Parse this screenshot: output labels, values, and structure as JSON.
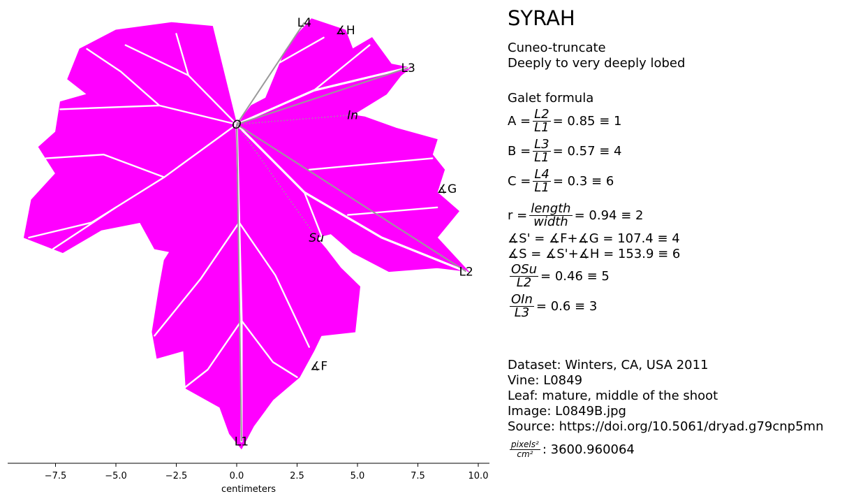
{
  "title": "SYRAH",
  "shape": "Cuneo-truncate",
  "lobing": "Deeply to very deeply lobed",
  "galet_heading": "Galet formula",
  "formulas": [
    {
      "lhs": "A =",
      "num": "L2",
      "den": "L1",
      "rhs": "= 0.85 ≡ 1"
    },
    {
      "lhs": "B =",
      "num": "L3",
      "den": "L1",
      "rhs": "= 0.57 ≡ 4"
    },
    {
      "lhs": "C =",
      "num": "L4",
      "den": "L1",
      "rhs": "= 0.3 ≡ 6"
    },
    {
      "lhs": "r =",
      "num": "length",
      "den": "width",
      "rhs": "= 0.94 ≡ 2"
    },
    {
      "text": "∡S' = ∡F+∡G = 107.4 ≡ 4"
    },
    {
      "text": "∡S = ∡S'+∡H = 153.9 ≡ 6"
    },
    {
      "lhs": "",
      "num": "OSu",
      "den": "L2",
      "rhs": "= 0.46 ≡ 5"
    },
    {
      "lhs": "",
      "num": "OIn",
      "den": "L3",
      "rhs": "= 0.6 ≡ 3"
    }
  ],
  "metadata": {
    "dataset": "Dataset: Winters, CA, USA 2011",
    "vine": "Vine: L0849",
    "leaf": "Leaf: mature, middle of the shoot",
    "image": "Image: L0849B.jpg",
    "source": "Source: https://doi.org/10.5061/dryad.g79cnp5mn",
    "px_num": "pixels²",
    "px_den": "cm²",
    "px_value": ": 3600.960064"
  },
  "colors": {
    "leaf": "#ff00ff",
    "vein": "#ffffff",
    "measure": "#9a9a9a"
  },
  "chart_data": {
    "type": "scatter",
    "xlabel": "centimeters",
    "xlim": [
      -9.5,
      10.5
    ],
    "ylim": [
      -8.9,
      4.6
    ],
    "x_ticks": [
      -7.5,
      -5.0,
      -2.5,
      0.0,
      2.5,
      5.0,
      7.5,
      10.0
    ],
    "x_tick_labels": [
      "−7.5",
      "−5.0",
      "−2.5",
      "0.0",
      "2.5",
      "5.0",
      "7.5",
      "10.0"
    ],
    "landmarks": [
      {
        "name": "O",
        "x": 0.0,
        "y": 0.0
      },
      {
        "name": "L1",
        "x": 0.2,
        "y": -8.4
      },
      {
        "name": "L2",
        "x": 9.5,
        "y": -3.9
      },
      {
        "name": "L3",
        "x": 7.1,
        "y": 1.5
      },
      {
        "name": "L4",
        "x": 2.8,
        "y": 2.7
      },
      {
        "name": "In",
        "x": 4.8,
        "y": 0.25
      },
      {
        "name": "Su",
        "x": 3.3,
        "y": -3.0
      }
    ],
    "angle_labels": [
      {
        "name": "∡H",
        "x": 4.5,
        "y": 2.5
      },
      {
        "name": "∡G",
        "x": 8.7,
        "y": -1.7
      },
      {
        "name": "∡F",
        "x": 3.4,
        "y": -6.4
      }
    ],
    "outline": [
      [
        0.0,
        0.0
      ],
      [
        -1.0,
        2.6
      ],
      [
        -2.7,
        2.7
      ],
      [
        -5.0,
        2.5
      ],
      [
        -6.5,
        2.0
      ],
      [
        -7.0,
        1.2
      ],
      [
        -6.2,
        0.8
      ],
      [
        -7.3,
        0.6
      ],
      [
        -7.5,
        -0.2
      ],
      [
        -8.2,
        -0.6
      ],
      [
        -7.5,
        -1.3
      ],
      [
        -8.5,
        -2.0
      ],
      [
        -8.8,
        -3.0
      ],
      [
        -7.2,
        -3.4
      ],
      [
        -5.6,
        -2.8
      ],
      [
        -4.0,
        -2.6
      ],
      [
        -3.4,
        -3.3
      ],
      [
        -2.6,
        -3.4
      ],
      [
        -2.3,
        -2.9
      ],
      [
        -3.0,
        -3.6
      ],
      [
        -3.2,
        -4.3
      ],
      [
        -3.5,
        -5.5
      ],
      [
        -3.3,
        -6.2
      ],
      [
        -2.2,
        -6.0
      ],
      [
        -2.1,
        -7.0
      ],
      [
        -0.7,
        -7.5
      ],
      [
        -0.3,
        -8.2
      ],
      [
        0.2,
        -8.6
      ],
      [
        0.7,
        -8.0
      ],
      [
        1.5,
        -7.3
      ],
      [
        2.6,
        -6.7
      ],
      [
        3.2,
        -6.0
      ],
      [
        3.5,
        -5.6
      ],
      [
        4.9,
        -5.5
      ],
      [
        5.1,
        -4.3
      ],
      [
        4.3,
        -3.8
      ],
      [
        3.7,
        -3.3
      ],
      [
        3.3,
        -3.0
      ],
      [
        3.9,
        -2.9
      ],
      [
        4.8,
        -3.4
      ],
      [
        6.3,
        -3.9
      ],
      [
        8.3,
        -3.8
      ],
      [
        9.6,
        -3.9
      ],
      [
        8.3,
        -3.0
      ],
      [
        9.2,
        -2.3
      ],
      [
        8.3,
        -1.8
      ],
      [
        8.6,
        -1.2
      ],
      [
        8.1,
        -0.8
      ],
      [
        8.3,
        -0.4
      ],
      [
        6.6,
        -0.1
      ],
      [
        5.3,
        0.2
      ],
      [
        4.8,
        0.25
      ],
      [
        6.2,
        0.8
      ],
      [
        6.8,
        1.3
      ],
      [
        7.2,
        1.5
      ],
      [
        6.4,
        1.6
      ],
      [
        5.6,
        2.3
      ],
      [
        4.8,
        2.0
      ],
      [
        4.5,
        2.5
      ],
      [
        3.1,
        2.8
      ],
      [
        2.1,
        2.1
      ],
      [
        1.2,
        0.7
      ],
      [
        0.6,
        0.5
      ],
      [
        0.0,
        0.0
      ]
    ],
    "veins": [
      [
        [
          0.0,
          0.0
        ],
        [
          0.1,
          -2.6
        ],
        [
          0.2,
          -5.2
        ],
        [
          0.2,
          -8.4
        ]
      ],
      [
        [
          0.0,
          0.0
        ],
        [
          2.8,
          -1.8
        ],
        [
          6.0,
          -3.0
        ],
        [
          9.5,
          -3.9
        ]
      ],
      [
        [
          0.0,
          0.0
        ],
        [
          3.2,
          0.9
        ],
        [
          7.1,
          1.5
        ]
      ],
      [
        [
          0.0,
          0.0
        ],
        [
          1.4,
          1.5
        ],
        [
          2.8,
          2.7
        ]
      ],
      [
        [
          0.0,
          0.0
        ],
        [
          -3.0,
          -1.4
        ],
        [
          -6.0,
          -2.6
        ],
        [
          -8.6,
          -3.0
        ]
      ],
      [
        [
          0.0,
          0.0
        ],
        [
          -3.2,
          0.5
        ],
        [
          -7.3,
          0.4
        ]
      ],
      [
        [
          0.0,
          0.0
        ],
        [
          -2.0,
          1.3
        ],
        [
          -4.6,
          2.1
        ]
      ],
      [
        [
          0.1,
          -2.6
        ],
        [
          -1.5,
          -4.1
        ],
        [
          -3.4,
          -5.6
        ]
      ],
      [
        [
          0.2,
          -5.2
        ],
        [
          -1.2,
          -6.5
        ],
        [
          -2.2,
          -7.0
        ]
      ],
      [
        [
          0.1,
          -2.6
        ],
        [
          1.6,
          -4.0
        ],
        [
          3.0,
          -5.9
        ]
      ],
      [
        [
          0.2,
          -5.2
        ],
        [
          1.5,
          -6.3
        ],
        [
          2.5,
          -6.7
        ]
      ],
      [
        [
          2.8,
          -1.8
        ],
        [
          3.6,
          -3.1
        ]
      ],
      [
        [
          4.6,
          -2.4
        ],
        [
          8.3,
          -2.2
        ]
      ],
      [
        [
          3.0,
          -1.2
        ],
        [
          8.1,
          -0.9
        ]
      ],
      [
        [
          3.2,
          0.9
        ],
        [
          5.5,
          2.1
        ]
      ],
      [
        [
          -3.0,
          -1.4
        ],
        [
          -5.5,
          -0.8
        ],
        [
          -7.9,
          -0.9
        ]
      ],
      [
        [
          -5.0,
          -2.2
        ],
        [
          -7.6,
          -3.3
        ]
      ],
      [
        [
          -3.2,
          0.5
        ],
        [
          -4.8,
          1.4
        ],
        [
          -6.2,
          2.0
        ]
      ],
      [
        [
          -2.0,
          1.3
        ],
        [
          -2.5,
          2.4
        ]
      ],
      [
        [
          1.4,
          1.5
        ],
        [
          3.6,
          2.3
        ]
      ]
    ],
    "measure_lines": [
      [
        [
          0.0,
          0.0
        ],
        [
          0.2,
          -8.4
        ]
      ],
      [
        [
          0.0,
          0.0
        ],
        [
          9.5,
          -3.9
        ]
      ],
      [
        [
          0.0,
          0.0
        ],
        [
          7.1,
          1.5
        ]
      ],
      [
        [
          0.0,
          0.0
        ],
        [
          2.8,
          2.7
        ]
      ]
    ],
    "dotted_lines": [
      [
        [
          0.0,
          0.0
        ],
        [
          4.8,
          0.25
        ]
      ],
      [
        [
          0.0,
          0.0
        ],
        [
          3.3,
          -3.0
        ]
      ]
    ]
  }
}
